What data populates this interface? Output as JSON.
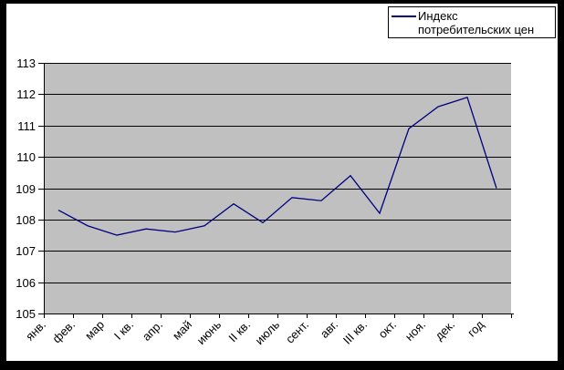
{
  "chart_data": {
    "type": "line",
    "title": "",
    "categories": [
      "янв.",
      "фев.",
      "мар",
      "I кв.",
      "апр.",
      "май",
      "июнь",
      "II кв.",
      "июль",
      "сент.",
      "авг.",
      "III кв.",
      "окт.",
      "ноя.",
      "дек.",
      "год"
    ],
    "series": [
      {
        "name": "Индекс потребительских цен",
        "values": [
          108.3,
          107.8,
          107.5,
          107.7,
          107.6,
          107.8,
          108.5,
          107.9,
          108.7,
          108.6,
          109.4,
          108.2,
          110.9,
          111.6,
          111.9,
          109.0
        ]
      }
    ],
    "xlabel": "",
    "ylabel": "",
    "ylim": [
      105,
      113
    ],
    "y_ticks": [
      105,
      106,
      107,
      108,
      109,
      110,
      111,
      112,
      113
    ],
    "grid": true,
    "legend_position": "top-right",
    "markers": false,
    "colors": {
      "line": "#000080",
      "plot_bg": "#c0c0c0",
      "gridline": "#000000",
      "axis": "#000000",
      "frame": "#000000",
      "background": "#ffffff"
    }
  }
}
